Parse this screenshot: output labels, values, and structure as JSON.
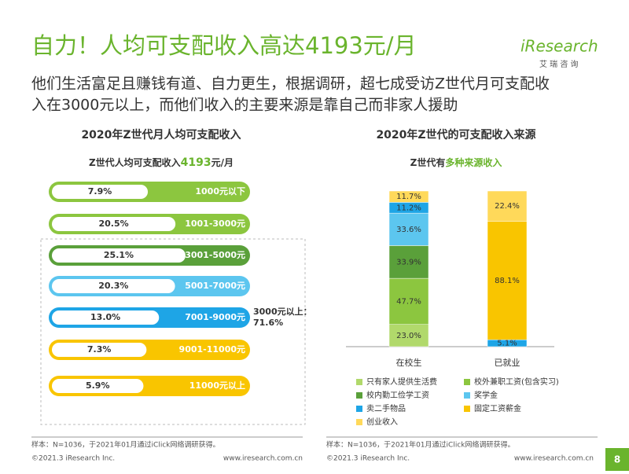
{
  "header": {
    "title": "自力！人均可支配收入高达4193元/月",
    "subtitle_lines": [
      "他们生活富足且赚钱有道、自力更生，根据调研，超七成受访Z世代月可支配收",
      "入在3000元以上，而他们收入的主要来源是靠自己而非家人援助"
    ]
  },
  "logo": {
    "brand": "iResearch",
    "tagline": "艾 瑞 咨 询"
  },
  "chart_data": [
    {
      "type": "pill-bar",
      "title": "2020年Z世代月人均可支配收入",
      "subtitle_parts": [
        "Z世代人均可支配收入",
        "4193",
        "元/月"
      ],
      "categories": [
        "1000元以下",
        "1001-3000元",
        "3001-5000元",
        "5001-7000元",
        "7001-9000元",
        "9001-11000元",
        "11000元以上"
      ],
      "values": [
        7.9,
        20.5,
        25.1,
        20.3,
        13.0,
        7.3,
        5.9
      ],
      "value_labels": [
        "7.9%",
        "20.5%",
        "25.1%",
        "20.3%",
        "13.0%",
        "7.3%",
        "5.9%"
      ],
      "colors": [
        "#8cc63f",
        "#8cc63f",
        "#5aa03a",
        "#5cc6ef",
        "#1ea5e6",
        "#f9c500",
        "#f9c500"
      ],
      "annotation_lines": [
        "3000元以上：",
        "71.6%"
      ]
    },
    {
      "type": "stacked-bar",
      "title": "2020年Z世代的可支配收入来源",
      "subtitle_parts": [
        "Z世代有",
        "多种来源收入"
      ],
      "categories": [
        "在校生",
        "已就业"
      ],
      "series": [
        {
          "name": "只有家人提供生活费",
          "color": "#b1d96b",
          "values": [
            23.0,
            null
          ],
          "value_labels": [
            "23.0%",
            null
          ]
        },
        {
          "name": "校外兼职工资(包含实习)",
          "color": "#8cc63f",
          "values": [
            47.7,
            null
          ],
          "value_labels": [
            "47.7%",
            null
          ]
        },
        {
          "name": "校内勤工俭学工资",
          "color": "#5aa03a",
          "values": [
            33.9,
            null
          ],
          "value_labels": [
            "33.9%",
            null
          ]
        },
        {
          "name": "奖学金",
          "color": "#5cc6ef",
          "values": [
            33.6,
            null
          ],
          "value_labels": [
            "33.6%",
            null
          ]
        },
        {
          "name": "卖二手物品",
          "color": "#1ea5e6",
          "values": [
            11.2,
            5.1
          ],
          "value_labels": [
            "11.2%",
            "5.1%"
          ]
        },
        {
          "name": "固定工资薪金",
          "color": "#f9c500",
          "values": [
            null,
            88.1
          ],
          "value_labels": [
            null,
            "88.1%"
          ]
        },
        {
          "name": "创业收入",
          "color": "#ffd95a",
          "values": [
            11.7,
            22.4
          ],
          "value_labels": [
            "11.7%",
            "22.4%"
          ]
        }
      ]
    }
  ],
  "footer": {
    "sample_left": "样本：N=1036，于2021年01月通过iClick网络调研获得。",
    "sample_right": "样本：N=1036，于2021年01月通过iClick网络调研获得。",
    "copyright_left": "©2021.3 iResearch Inc.",
    "url_left": "www.iresearch.com.cn",
    "copyright_right": "©2021.3 iResearch Inc.",
    "url_right": "www.iresearch.com.cn",
    "page": "8"
  }
}
